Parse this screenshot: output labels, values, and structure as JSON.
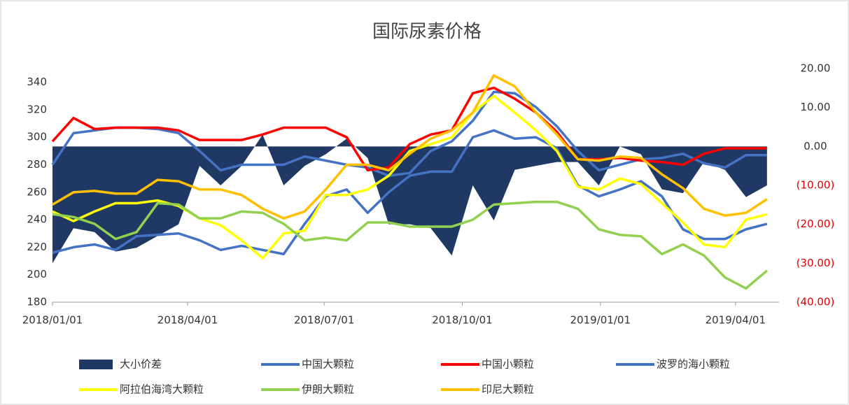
{
  "chart_data": {
    "type": "line",
    "title": "国际尿素价格",
    "x": [
      "2018/01/01",
      "2018/01/15",
      "2018/01/29",
      "2018/02/12",
      "2018/02/26",
      "2018/03/12",
      "2018/03/26",
      "2018/04/09",
      "2018/04/23",
      "2018/05/07",
      "2018/05/21",
      "2018/06/04",
      "2018/06/18",
      "2018/07/02",
      "2018/07/16",
      "2018/07/30",
      "2018/08/13",
      "2018/08/27",
      "2018/09/10",
      "2018/09/24",
      "2018/10/08",
      "2018/10/22",
      "2018/11/05",
      "2018/11/19",
      "2018/12/03",
      "2018/12/17",
      "2018/12/31",
      "2019/01/14",
      "2019/01/28",
      "2019/02/11",
      "2019/02/25",
      "2019/03/11",
      "2019/03/25",
      "2019/04/08",
      "2019/04/22"
    ],
    "xlim": [
      "2018/01/01",
      "2019/04/30"
    ],
    "xticks": [
      "2018/01/01",
      "2018/04/01",
      "2018/07/01",
      "2018/10/01",
      "2019/01/01",
      "2019/04/01"
    ],
    "ylim": [
      180,
      350
    ],
    "yticks": [
      180,
      200,
      220,
      240,
      260,
      280,
      300,
      320,
      340
    ],
    "y2lim": [
      -40,
      20
    ],
    "y2ticks": [
      {
        "value": -40,
        "label": "(40.00)"
      },
      {
        "value": -30,
        "label": "(30.00)"
      },
      {
        "value": -20,
        "label": "(20.00)"
      },
      {
        "value": -10,
        "label": "(10.00)"
      },
      {
        "value": 0,
        "label": "0.00"
      },
      {
        "value": 10,
        "label": "10.00"
      },
      {
        "value": 20,
        "label": "20.00"
      }
    ],
    "grid": false,
    "series": [
      {
        "name": "大小价差",
        "type": "area",
        "axis": "y2",
        "color": "#203864",
        "values": [
          -30,
          -21,
          -22,
          -27,
          -26,
          -23,
          -20,
          -5,
          -10,
          -5,
          3,
          -10,
          -5,
          -2,
          2,
          -3,
          -20,
          -20,
          -21,
          -28,
          -10,
          -19,
          -6,
          -5,
          -4,
          -4,
          -10,
          0,
          -2,
          -11,
          -12,
          -4,
          -6,
          -13,
          -10
        ]
      },
      {
        "name": "中国大颗粒",
        "color": "#4472c4",
        "values": [
          280,
          303,
          305,
          307,
          307,
          306,
          303,
          290,
          276,
          280,
          280,
          280,
          286,
          283,
          280,
          278,
          272,
          274,
          290,
          297,
          312,
          333,
          332,
          322,
          308,
          290,
          276,
          280,
          284,
          285,
          288,
          281,
          278,
          287,
          287
        ]
      },
      {
        "name": "中国小颗粒",
        "color": "#ff0000",
        "values": [
          297,
          314,
          306,
          307,
          307,
          307,
          305,
          298,
          298,
          298,
          302,
          307,
          307,
          307,
          300,
          276,
          278,
          295,
          302,
          305,
          332,
          336,
          328,
          318,
          304,
          284,
          284,
          285,
          283,
          282,
          280,
          288,
          292,
          292,
          292
        ]
      },
      {
        "name": "波罗的海小颗粒",
        "color": "#4472c4",
        "values": [
          216,
          220,
          222,
          218,
          228,
          229,
          230,
          225,
          218,
          221,
          218,
          215,
          237,
          257,
          262,
          245,
          260,
          272,
          275,
          275,
          300,
          305,
          299,
          300,
          292,
          265,
          257,
          262,
          268,
          257,
          233,
          226,
          226,
          233,
          237
        ]
      },
      {
        "name": "阿拉伯海湾大颗粒",
        "color": "#ffff00",
        "values": [
          246,
          239,
          246,
          252,
          252,
          254,
          250,
          241,
          236,
          225,
          212,
          230,
          232,
          258,
          258,
          262,
          272,
          290,
          295,
          300,
          318,
          330,
          318,
          305,
          290,
          264,
          262,
          270,
          266,
          252,
          238,
          222,
          220,
          240,
          244
        ]
      },
      {
        "name": "伊朗大颗粒",
        "color": "#92d050",
        "values": [
          244,
          242,
          237,
          226,
          231,
          252,
          251,
          241,
          241,
          246,
          245,
          237,
          225,
          227,
          225,
          238,
          238,
          235,
          235,
          235,
          240,
          251,
          252,
          253,
          253,
          248,
          233,
          229,
          228,
          215,
          222,
          214,
          198,
          190,
          203
        ]
      },
      {
        "name": "印尼大颗粒",
        "color": "#ffc000",
        "values": [
          251,
          260,
          261,
          259,
          259,
          269,
          268,
          262,
          262,
          258,
          248,
          241,
          246,
          262,
          280,
          280,
          276,
          288,
          299,
          305,
          318,
          345,
          337,
          318,
          302,
          284,
          283,
          286,
          285,
          273,
          263,
          248,
          243,
          245,
          255
        ]
      }
    ]
  }
}
